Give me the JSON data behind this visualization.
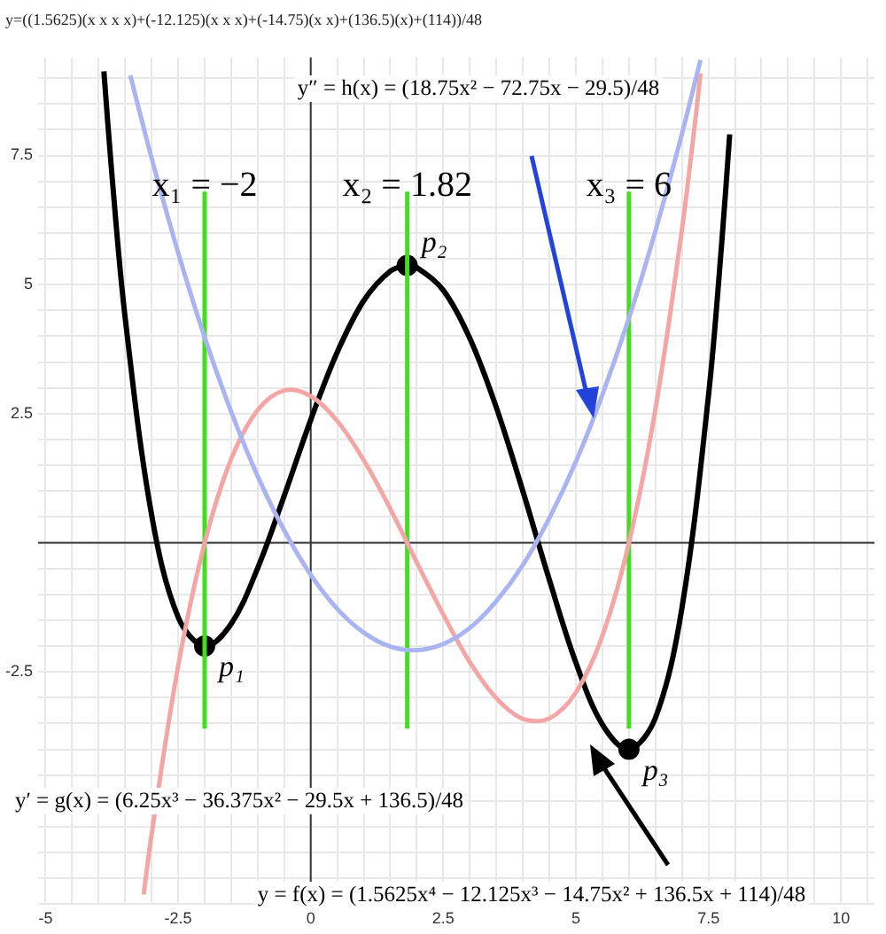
{
  "chart_data": {
    "type": "line",
    "title": "y=((1.5625)(x x x x)+(-12.125)(x x x)+(-14.75)(x x)+(136.5)(x)+(114))/48",
    "xlim": [
      -5.14,
      10.63
    ],
    "ylim": [
      -7,
      9.4
    ],
    "xticks": [
      {
        "value": -5,
        "label": "-5"
      },
      {
        "value": -4.5,
        "label": null
      },
      {
        "value": -4,
        "label": null
      },
      {
        "value": -3.5,
        "label": null
      },
      {
        "value": -3,
        "label": null
      },
      {
        "value": -2.5,
        "label": "-2.5"
      },
      {
        "value": -2,
        "label": null
      },
      {
        "value": -1.5,
        "label": null
      },
      {
        "value": -1,
        "label": null
      },
      {
        "value": -0.5,
        "label": null
      },
      {
        "value": 0,
        "label": "0"
      },
      {
        "value": 0.5,
        "label": null
      },
      {
        "value": 1,
        "label": null
      },
      {
        "value": 1.5,
        "label": null
      },
      {
        "value": 2,
        "label": null
      },
      {
        "value": 2.5,
        "label": "2.5"
      },
      {
        "value": 3,
        "label": null
      },
      {
        "value": 3.5,
        "label": null
      },
      {
        "value": 4,
        "label": null
      },
      {
        "value": 4.5,
        "label": null
      },
      {
        "value": 5,
        "label": "5"
      },
      {
        "value": 5.5,
        "label": null
      },
      {
        "value": 6,
        "label": null
      },
      {
        "value": 6.5,
        "label": null
      },
      {
        "value": 7,
        "label": null
      },
      {
        "value": 7.5,
        "label": "7.5"
      },
      {
        "value": 8,
        "label": null
      },
      {
        "value": 8.5,
        "label": null
      },
      {
        "value": 9,
        "label": null
      },
      {
        "value": 9.5,
        "label": null
      },
      {
        "value": 10,
        "label": "10"
      },
      {
        "value": 10.5,
        "label": null
      }
    ],
    "yticks": [
      {
        "value": -7,
        "label": null
      },
      {
        "value": -6.5,
        "label": null
      },
      {
        "value": -6,
        "label": null
      },
      {
        "value": -5.5,
        "label": null
      },
      {
        "value": -5,
        "label": null
      },
      {
        "value": -4.5,
        "label": null
      },
      {
        "value": -4,
        "label": null
      },
      {
        "value": -3.5,
        "label": null
      },
      {
        "value": -3,
        "label": null
      },
      {
        "value": -2.5,
        "label": "-2.5"
      },
      {
        "value": -2,
        "label": null
      },
      {
        "value": -1.5,
        "label": null
      },
      {
        "value": -1,
        "label": null
      },
      {
        "value": -0.5,
        "label": null
      },
      {
        "value": 0,
        "label": null
      },
      {
        "value": 0.5,
        "label": null
      },
      {
        "value": 1,
        "label": null
      },
      {
        "value": 1.5,
        "label": null
      },
      {
        "value": 2,
        "label": null
      },
      {
        "value": 2.5,
        "label": "2.5"
      },
      {
        "value": 3,
        "label": null
      },
      {
        "value": 3.5,
        "label": null
      },
      {
        "value": 4,
        "label": null
      },
      {
        "value": 4.5,
        "label": null
      },
      {
        "value": 5,
        "label": "5"
      },
      {
        "value": 5.5,
        "label": null
      },
      {
        "value": 6,
        "label": null
      },
      {
        "value": 6.5,
        "label": null
      },
      {
        "value": 7,
        "label": null
      },
      {
        "value": 7.5,
        "label": "7.5"
      },
      {
        "value": 8,
        "label": null
      },
      {
        "value": 8.5,
        "label": null
      },
      {
        "value": 9,
        "label": null
      }
    ],
    "grid": true,
    "series": [
      {
        "type": "line",
        "color": "#a9b4f0",
        "x": [
          -3.4,
          -3.2,
          -3,
          -2.5,
          -2,
          -1.5,
          -1,
          -0.5,
          0,
          0.5,
          1,
          1.5,
          2,
          2.5,
          3,
          3.5,
          4,
          4.5,
          5,
          5.5,
          6,
          6.5,
          7,
          7.35
        ],
        "values": [
          9.05,
          8.24,
          7.45,
          5.62,
          3.98,
          2.54,
          1.29,
          0.24,
          -0.62,
          -1.28,
          -1.74,
          -2.01,
          -2.08,
          -1.96,
          -1.65,
          -1.13,
          -0.43,
          0.48,
          1.57,
          2.87,
          4.35,
          6.04,
          7.92,
          9.35
        ]
      },
      {
        "type": "line",
        "color": "#f4a6a6",
        "x": [
          -3.15,
          -3,
          -2.5,
          -2,
          -1.5,
          -1,
          -0.5,
          0,
          0.5,
          1,
          1.5,
          2,
          2.5,
          3,
          3.5,
          4,
          4.5,
          5,
          5.5,
          6,
          6.5,
          7,
          7.25,
          7.35
        ],
        "values": [
          -6.81,
          -5.65,
          -2.39,
          0,
          1.62,
          2.57,
          2.95,
          2.84,
          2.36,
          1.6,
          0.66,
          -0.38,
          -1.39,
          -2.31,
          -3.01,
          -3.41,
          -3.4,
          -2.9,
          -1.8,
          0,
          2.59,
          6.07,
          8.17,
          9.09
        ]
      },
      {
        "type": "line",
        "color": "#44dd22",
        "x": [
          -2,
          -2
        ],
        "values": [
          -3.6,
          6.8
        ]
      },
      {
        "type": "line",
        "color": "#44dd22",
        "x": [
          1.82,
          1.82
        ],
        "values": [
          -3.6,
          6.8
        ]
      },
      {
        "type": "line",
        "color": "#44dd22",
        "x": [
          6,
          6
        ],
        "values": [
          -3.6,
          6.8
        ]
      },
      {
        "type": "line",
        "color": "#000000",
        "x": [
          -3.9,
          -3.75,
          -3.5,
          -3,
          -2.5,
          -2,
          -1.5,
          -1,
          -0.5,
          0,
          0.5,
          1,
          1.5,
          1.82,
          2,
          2.5,
          3,
          3.5,
          4,
          4.5,
          5,
          5.5,
          6,
          6.5,
          7,
          7.5,
          7.75,
          7.9
        ],
        "values": [
          9.13,
          7.15,
          4.37,
          0.54,
          -1.44,
          -2,
          -1.57,
          -0.49,
          0.91,
          2.38,
          3.69,
          4.69,
          5.26,
          5.37,
          5.33,
          4.89,
          3.96,
          2.62,
          1,
          -0.72,
          -2.32,
          -3.52,
          -4,
          -3.39,
          -1.26,
          2.85,
          5.81,
          7.91
        ]
      },
      {
        "type": "scatter",
        "color": "#000000",
        "marker": "circle",
        "x": [
          -2,
          1.82,
          6
        ],
        "values": [
          -2,
          5.37,
          -4
        ]
      }
    ],
    "annotations": [
      {
        "text": "x₁ = −2",
        "x": -2,
        "y": 6.9
      },
      {
        "text": "x₂ = 1.82",
        "x": 1.82,
        "y": 6.9
      },
      {
        "text": "x₃ = 6",
        "x": 6,
        "y": 6.9
      },
      {
        "text": "p₁",
        "x": -2,
        "y": -2
      },
      {
        "text": "p₂",
        "x": 1.82,
        "y": 5.37
      },
      {
        "text": "p₃",
        "x": 6,
        "y": -4
      },
      "y″ = h(x) = (18.75x² − 72.75x − 29.5)/48",
      "y′ = g(x) = (6.25x³ − 36.375x² − 29.5x + 136.5)/48",
      "y = f(x) = (1.5625x⁴ − 12.125x³ − 14.75x² + 136.5x + 114)/48"
    ]
  }
}
